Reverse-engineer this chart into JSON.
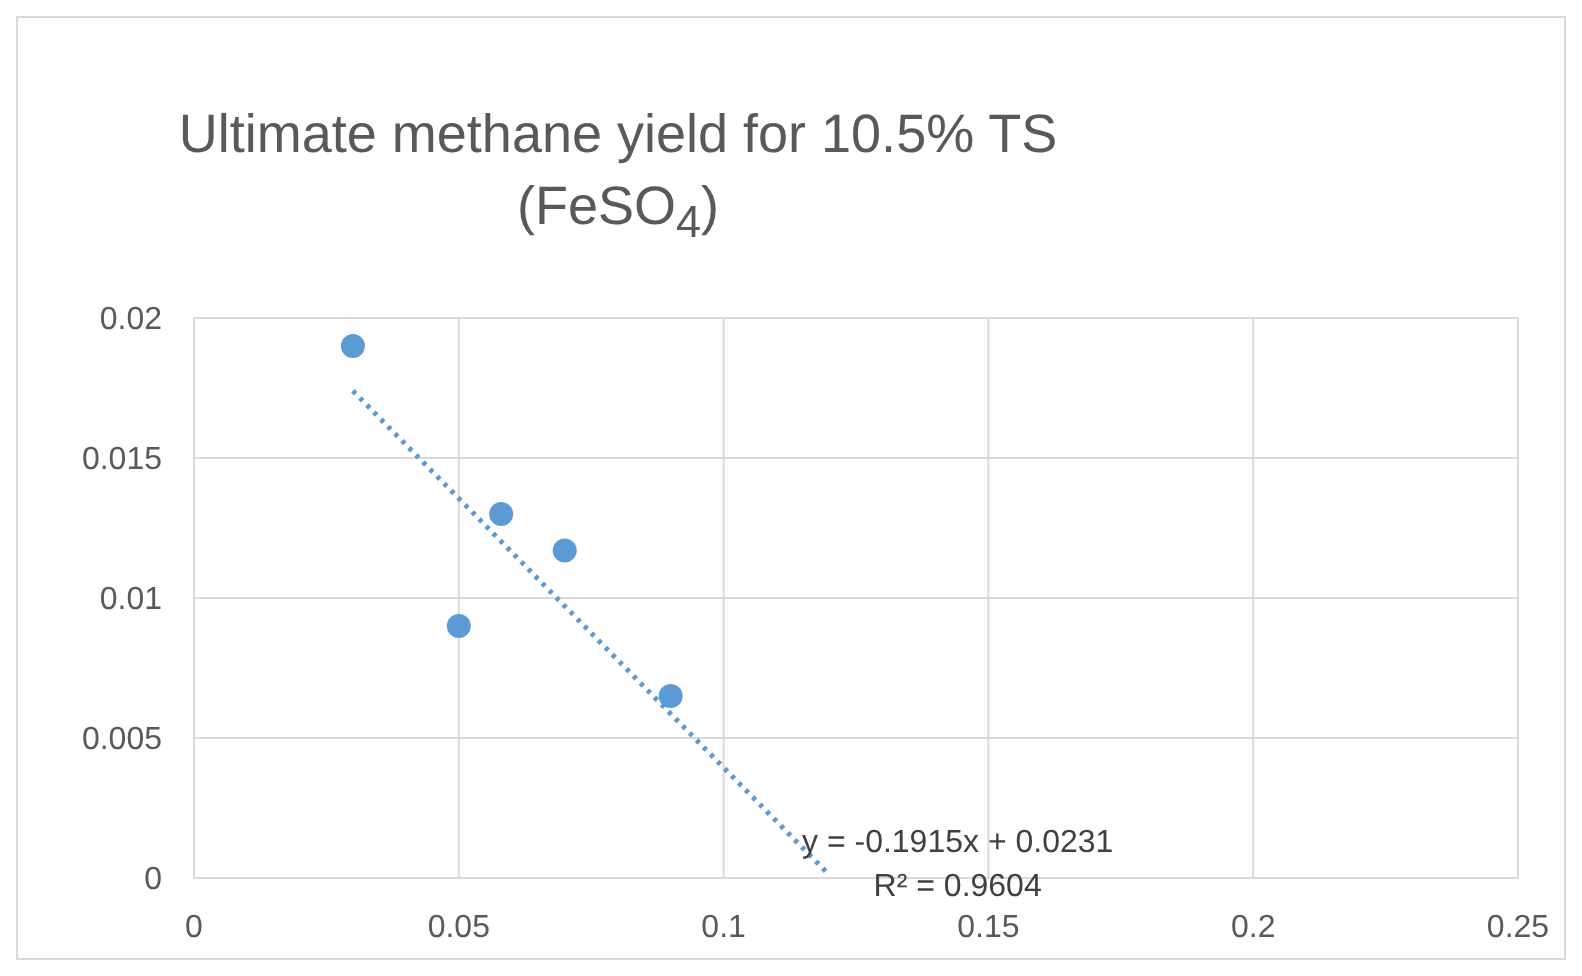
{
  "chart_data": {
    "type": "scatter",
    "title": "Ultimate methane yield for 10.5% TS (FeSO$_{4}$)",
    "xlim": [
      0,
      0.25
    ],
    "xticks": [
      0,
      0.05,
      0.1,
      0.15,
      0.2,
      0.25
    ],
    "ylim": [
      0,
      0.02
    ],
    "yticks": [
      0,
      0.005,
      0.01,
      0.015,
      0.02
    ],
    "grid": true,
    "legend": false,
    "marker": "circle",
    "series": [
      {
        "color": "#5b9bd5",
        "x": [
          0.03,
          0.05,
          0.058,
          0.07,
          0.09
        ],
        "values": [
          0.019,
          0.009,
          0.013,
          0.0117,
          0.0065
        ]
      },
      {
        "type": "line",
        "color": "#5b9bd5",
        "line_style": "dotted",
        "marker": "none",
        "x": [
          0.03,
          0.12
        ],
        "values": [
          0.0174,
          0.0001
        ]
      }
    ],
    "annotations": [
      "y = -0.1915x + 0.0231",
      "R² = 0.9604"
    ]
  }
}
